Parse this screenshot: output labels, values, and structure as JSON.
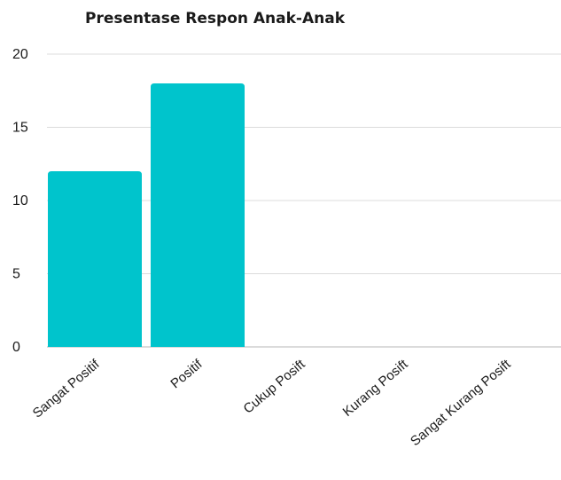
{
  "chart_data": {
    "type": "bar",
    "title": "Presentase Respon Anak-Anak",
    "xlabel": "",
    "ylabel": "",
    "categories": [
      "Sangat Positif",
      "Positif",
      "Cukup Posift",
      "Kurang Posift",
      "Sangat Kurang Posift"
    ],
    "values": [
      12,
      18,
      0,
      0,
      0
    ],
    "ylim": [
      0,
      20
    ],
    "yticks": [
      "0",
      "5",
      "10",
      "15",
      "20"
    ],
    "grid": true,
    "legend": "none",
    "bar_color": "#00c4cc"
  }
}
